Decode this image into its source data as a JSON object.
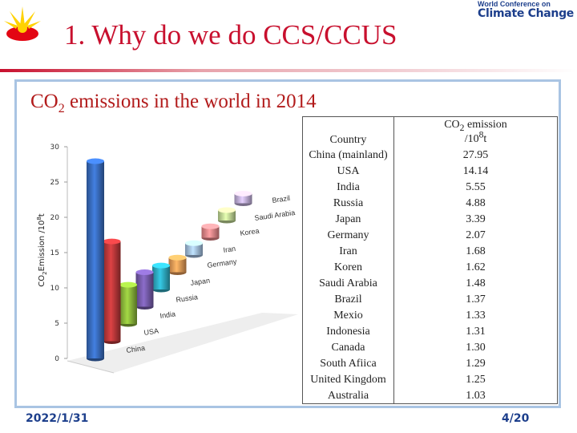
{
  "slide": {
    "title": "1. Why do we do CCS/CCUS",
    "conference_small": "World Conference on",
    "conference_big": "Climate Change",
    "date": "2022/1/31",
    "page": "4/20"
  },
  "chart_heading": {
    "prefix": "CO",
    "sub": "2",
    "suffix": " emissions in the world in 2014"
  },
  "chart_data": {
    "type": "bar",
    "title": "",
    "ylabel_prefix": "CO",
    "ylabel_sub": "2",
    "ylabel_mid": "Emission /10",
    "ylabel_sup": "8",
    "ylabel_suffix": "t",
    "ylim": [
      0,
      30
    ],
    "yticks": [
      0,
      5,
      10,
      15,
      20,
      25,
      30
    ],
    "categories": [
      "China",
      "USA",
      "India",
      "Russia",
      "Japan",
      "Germany",
      "Iran",
      "Korea",
      "Saudi Arabia",
      "Brazil"
    ],
    "values": [
      27.95,
      14.14,
      5.55,
      4.88,
      3.39,
      2.07,
      1.68,
      1.62,
      1.48,
      1.37
    ],
    "colors": [
      "#3a6fc4",
      "#c0393b",
      "#8fbd3c",
      "#7a5fb0",
      "#2fb0c8",
      "#f0a05a",
      "#a8c6ea",
      "#f08b8e",
      "#c9e39b",
      "#c8b6e2"
    ],
    "grid": false
  },
  "table": {
    "header_country": "Country",
    "header_emission": {
      "prefix": "CO",
      "sub": "2",
      "mid": " emission",
      "line2_prefix": "/10",
      "sup": "8",
      "line2_suffix": "t"
    },
    "rows": [
      {
        "country": "China (mainland)",
        "value": "27.95"
      },
      {
        "country": "USA",
        "value": "14.14"
      },
      {
        "country": "India",
        "value": "5.55"
      },
      {
        "country": "Russia",
        "value": "4.88"
      },
      {
        "country": "Japan",
        "value": "3.39"
      },
      {
        "country": "Germany",
        "value": "2.07"
      },
      {
        "country": "Iran",
        "value": "1.68"
      },
      {
        "country": "Koren",
        "value": "1.62"
      },
      {
        "country": "Saudi Arabia",
        "value": "1.48"
      },
      {
        "country": "Brazil",
        "value": "1.37"
      },
      {
        "country": "Mexio",
        "value": "1.33"
      },
      {
        "country": "Indonesia",
        "value": "1.31"
      },
      {
        "country": "Canada",
        "value": "1.30"
      },
      {
        "country": "South Afiica",
        "value": "1.29"
      },
      {
        "country": "United Kingdom",
        "value": "1.25"
      },
      {
        "country": "Australia",
        "value": "1.03"
      }
    ]
  }
}
